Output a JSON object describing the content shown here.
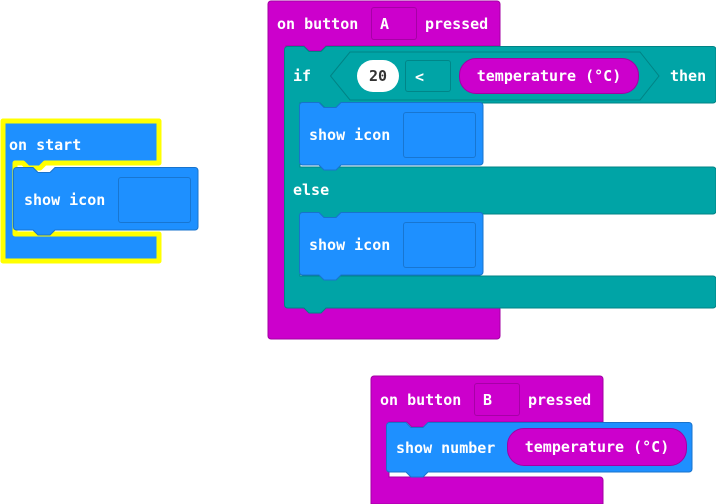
{
  "colors": {
    "event_magenta": "#cc00cc",
    "logic_teal": "#00a4a6",
    "basic_blue": "#1e90ff",
    "highlight_yellow": "#ffff00"
  },
  "on_start": {
    "label": "on start",
    "show_icon_label": "show icon",
    "icon_value": ""
  },
  "button_a": {
    "prefix": "on button",
    "button": "A",
    "suffix": "pressed",
    "if_label": "if",
    "number": "20",
    "operator": "<",
    "sensor": "temperature (°C)",
    "then_label": "then",
    "show_icon_label_1": "show icon",
    "icon_value_1": "",
    "else_label": "else",
    "show_icon_label_2": "show icon",
    "icon_value_2": ""
  },
  "button_b": {
    "prefix": "on button",
    "button": "B",
    "suffix": "pressed",
    "show_number_label": "show number",
    "sensor": "temperature (°C)"
  }
}
